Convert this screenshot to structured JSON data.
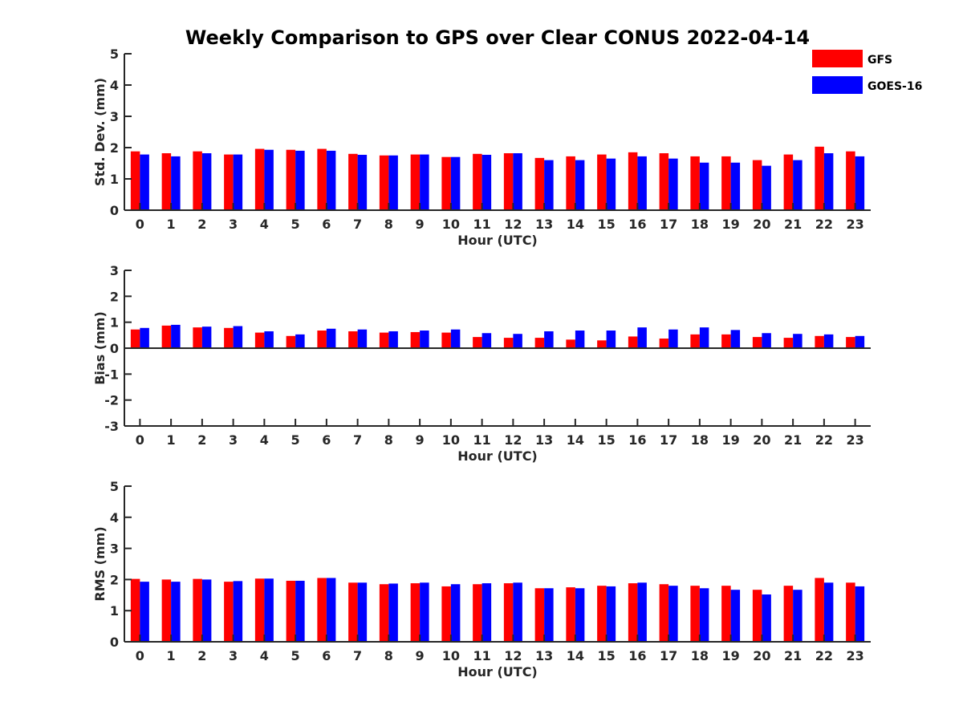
{
  "title": "Weekly Comparison to GPS over Clear CONUS 2022-04-14",
  "legend": [
    {
      "label": "GFS",
      "color": "#ff0000"
    },
    {
      "label": "GOES-16",
      "color": "#0000ff"
    }
  ],
  "chart_data": [
    {
      "type": "bar",
      "ylabel": "Std. Dev. (mm)",
      "xlabel": "Hour (UTC)",
      "ylim": [
        0,
        5
      ],
      "yticks": [
        0,
        1,
        2,
        3,
        4,
        5
      ],
      "categories": [
        "0",
        "1",
        "2",
        "3",
        "4",
        "5",
        "6",
        "7",
        "8",
        "9",
        "10",
        "11",
        "12",
        "13",
        "14",
        "15",
        "16",
        "17",
        "18",
        "19",
        "20",
        "21",
        "22",
        "23"
      ],
      "series": [
        {
          "name": "GFS",
          "values": [
            1.88,
            1.82,
            1.88,
            1.78,
            1.96,
            1.93,
            1.96,
            1.8,
            1.75,
            1.78,
            1.7,
            1.8,
            1.82,
            1.67,
            1.72,
            1.78,
            1.85,
            1.82,
            1.72,
            1.72,
            1.6,
            1.78,
            2.03,
            1.88
          ]
        },
        {
          "name": "GOES-16",
          "values": [
            1.78,
            1.72,
            1.82,
            1.78,
            1.93,
            1.9,
            1.9,
            1.77,
            1.75,
            1.78,
            1.7,
            1.77,
            1.82,
            1.6,
            1.6,
            1.65,
            1.72,
            1.65,
            1.52,
            1.52,
            1.42,
            1.6,
            1.82,
            1.72
          ]
        }
      ]
    },
    {
      "type": "bar",
      "ylabel": "Bias (mm)",
      "xlabel": "Hour (UTC)",
      "ylim": [
        -3,
        3
      ],
      "yticks": [
        -3,
        -2,
        -1,
        0,
        1,
        2,
        3
      ],
      "categories": [
        "0",
        "1",
        "2",
        "3",
        "4",
        "5",
        "6",
        "7",
        "8",
        "9",
        "10",
        "11",
        "12",
        "13",
        "14",
        "15",
        "16",
        "17",
        "18",
        "19",
        "20",
        "21",
        "22",
        "23"
      ],
      "series": [
        {
          "name": "GFS",
          "values": [
            0.72,
            0.87,
            0.8,
            0.78,
            0.6,
            0.47,
            0.68,
            0.65,
            0.6,
            0.62,
            0.6,
            0.43,
            0.4,
            0.4,
            0.33,
            0.3,
            0.45,
            0.37,
            0.53,
            0.53,
            0.43,
            0.4,
            0.47,
            0.43
          ]
        },
        {
          "name": "GOES-16",
          "values": [
            0.78,
            0.9,
            0.83,
            0.85,
            0.65,
            0.53,
            0.75,
            0.72,
            0.65,
            0.68,
            0.72,
            0.58,
            0.55,
            0.65,
            0.68,
            0.68,
            0.8,
            0.72,
            0.8,
            0.7,
            0.58,
            0.55,
            0.53,
            0.47
          ]
        }
      ]
    },
    {
      "type": "bar",
      "ylabel": "RMS (mm)",
      "xlabel": "Hour (UTC)",
      "ylim": [
        0,
        5
      ],
      "yticks": [
        0,
        1,
        2,
        3,
        4,
        5
      ],
      "categories": [
        "0",
        "1",
        "2",
        "3",
        "4",
        "5",
        "6",
        "7",
        "8",
        "9",
        "10",
        "11",
        "12",
        "13",
        "14",
        "15",
        "16",
        "17",
        "18",
        "19",
        "20",
        "21",
        "22",
        "23"
      ],
      "series": [
        {
          "name": "GFS",
          "values": [
            2.02,
            2.0,
            2.02,
            1.93,
            2.03,
            1.96,
            2.05,
            1.9,
            1.85,
            1.88,
            1.78,
            1.85,
            1.88,
            1.72,
            1.75,
            1.8,
            1.88,
            1.85,
            1.8,
            1.8,
            1.67,
            1.8,
            2.05,
            1.9
          ]
        },
        {
          "name": "GOES-16",
          "values": [
            1.93,
            1.93,
            2.0,
            1.95,
            2.03,
            1.96,
            2.05,
            1.9,
            1.87,
            1.9,
            1.85,
            1.88,
            1.9,
            1.72,
            1.72,
            1.78,
            1.9,
            1.8,
            1.72,
            1.67,
            1.52,
            1.67,
            1.9,
            1.78
          ]
        }
      ]
    }
  ]
}
